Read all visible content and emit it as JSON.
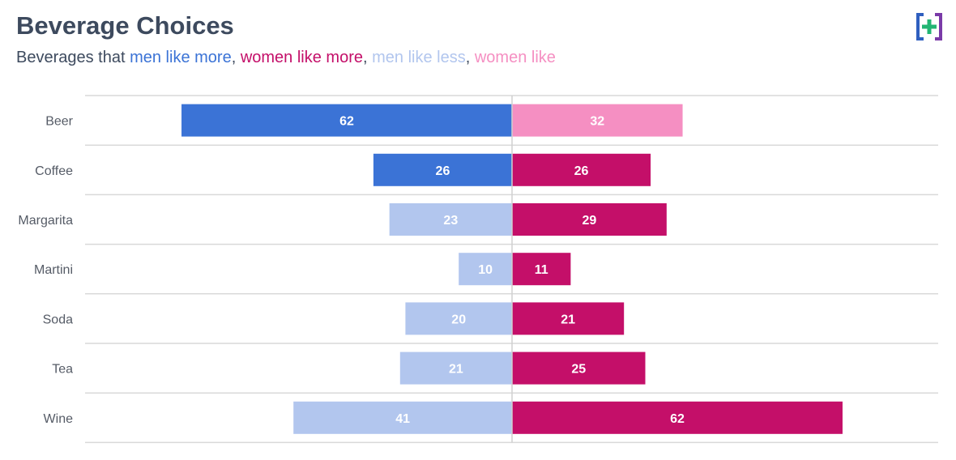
{
  "title": "Beverage Choices",
  "subtitle": {
    "prefix": "Beverages that ",
    "men_more": "men like more",
    "sep1": ", ",
    "women_more": "women like more",
    "sep2": ", ",
    "men_less": "men like less",
    "sep3": ", ",
    "women_less": "women like"
  },
  "colors": {
    "men_more": "#3b73d6",
    "women_more": "#c40f69",
    "men_less": "#b2c6ee",
    "women_less": "#f58fc2",
    "label_dark": "#ffffff",
    "label_light": "#ffffff",
    "grid": "#d9d9d9"
  },
  "logo": {
    "icon": "plus-bracket-logo-icon"
  },
  "chart_data": {
    "type": "bar",
    "orientation": "horizontal-diverging",
    "categories": [
      "Beer",
      "Coffee",
      "Margarita",
      "Martini",
      "Soda",
      "Tea",
      "Wine"
    ],
    "series": [
      {
        "name": "men",
        "direction": "left",
        "values": [
          62,
          26,
          23,
          10,
          20,
          21,
          41
        ],
        "status": [
          "more",
          "more",
          "less",
          "less",
          "less",
          "less",
          "less"
        ]
      },
      {
        "name": "women",
        "direction": "right",
        "values": [
          32,
          26,
          29,
          11,
          21,
          25,
          62
        ],
        "status": [
          "less",
          "more",
          "more",
          "more",
          "more",
          "more",
          "more"
        ]
      }
    ],
    "xlim": [
      -80,
      80
    ],
    "grid": true
  }
}
